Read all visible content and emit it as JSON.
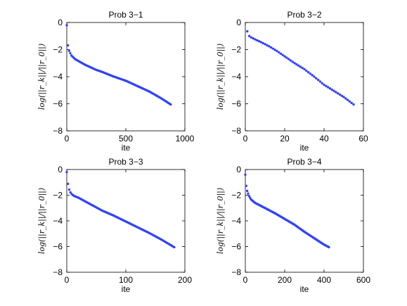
{
  "figure": {
    "background": "#ffffff",
    "marker_color": "#3344ee"
  },
  "chart_data": [
    {
      "type": "scatter",
      "title": "Prob 3−1",
      "xlabel": "ite",
      "ylabel": "log(||r_k||/||r_0||)",
      "xlim": [
        0,
        1000
      ],
      "ylim": [
        -8,
        0
      ],
      "xticks": [
        "0",
        "500",
        "1000"
      ],
      "yticks": [
        "0",
        "−2",
        "−4",
        "−6",
        "−8"
      ],
      "x_end": 880,
      "curve": {
        "x": [
          0,
          2,
          5,
          10,
          20,
          40,
          70,
          100,
          150,
          200,
          250,
          300,
          400,
          500,
          600,
          700,
          800,
          880
        ],
        "y": [
          -0.2,
          -0.9,
          -1.3,
          -1.7,
          -2.1,
          -2.45,
          -2.7,
          -2.85,
          -3.1,
          -3.3,
          -3.5,
          -3.65,
          -4.0,
          -4.3,
          -4.7,
          -5.1,
          -5.6,
          -6.05
        ]
      },
      "grid": false,
      "legend": "none"
    },
    {
      "type": "scatter",
      "title": "Prob 3−2",
      "xlabel": "ite",
      "ylabel": "log(||r_k||/||r_0||)",
      "xlim": [
        0,
        60
      ],
      "ylim": [
        -8,
        0
      ],
      "xticks": [
        "0",
        "20",
        "40",
        "60"
      ],
      "yticks": [
        "0",
        "−2",
        "−4",
        "−6",
        "−8"
      ],
      "x_end": 55,
      "curve": {
        "x": [
          1,
          2,
          3,
          5,
          8,
          12,
          16,
          20,
          25,
          30,
          35,
          40,
          45,
          50,
          55
        ],
        "y": [
          -0.65,
          -1.0,
          -1.1,
          -1.25,
          -1.45,
          -1.75,
          -2.1,
          -2.5,
          -3.0,
          -3.45,
          -4.0,
          -4.6,
          -5.05,
          -5.5,
          -6.05
        ]
      },
      "grid": false,
      "legend": "none"
    },
    {
      "type": "scatter",
      "title": "Prob 3−3",
      "xlabel": "ite",
      "ylabel": "log(||r_k||/||r_0||)",
      "xlim": [
        0,
        200
      ],
      "ylim": [
        -8,
        0
      ],
      "xticks": [
        "0",
        "100",
        "200"
      ],
      "yticks": [
        "0",
        "−2",
        "−4",
        "−6",
        "−8"
      ],
      "x_end": 182,
      "curve": {
        "x": [
          0,
          1,
          2,
          3,
          5,
          8,
          12,
          20,
          30,
          40,
          50,
          60,
          80,
          100,
          120,
          140,
          160,
          182
        ],
        "y": [
          -0.2,
          -0.7,
          -1.1,
          -1.4,
          -1.7,
          -1.9,
          -2.05,
          -2.2,
          -2.45,
          -2.7,
          -2.95,
          -3.2,
          -3.6,
          -4.05,
          -4.5,
          -4.95,
          -5.45,
          -6.05
        ]
      },
      "grid": false,
      "legend": "none"
    },
    {
      "type": "scatter",
      "title": "Prob 3−4",
      "xlabel": "ite",
      "ylabel": "log(||r_k||/||r_0||)",
      "xlim": [
        0,
        600
      ],
      "ylim": [
        -8,
        0
      ],
      "xticks": [
        "0",
        "200",
        "400",
        "600"
      ],
      "yticks": [
        "0",
        "−2",
        "−4",
        "−6",
        "−8"
      ],
      "x_end": 425,
      "curve": {
        "x": [
          0,
          2,
          5,
          10,
          20,
          30,
          50,
          75,
          100,
          150,
          200,
          250,
          300,
          350,
          400,
          425
        ],
        "y": [
          -0.4,
          -0.9,
          -1.3,
          -1.7,
          -2.1,
          -2.35,
          -2.6,
          -2.8,
          -3.0,
          -3.4,
          -3.85,
          -4.3,
          -4.85,
          -5.35,
          -5.85,
          -6.05
        ]
      },
      "grid": false,
      "legend": "none"
    }
  ]
}
